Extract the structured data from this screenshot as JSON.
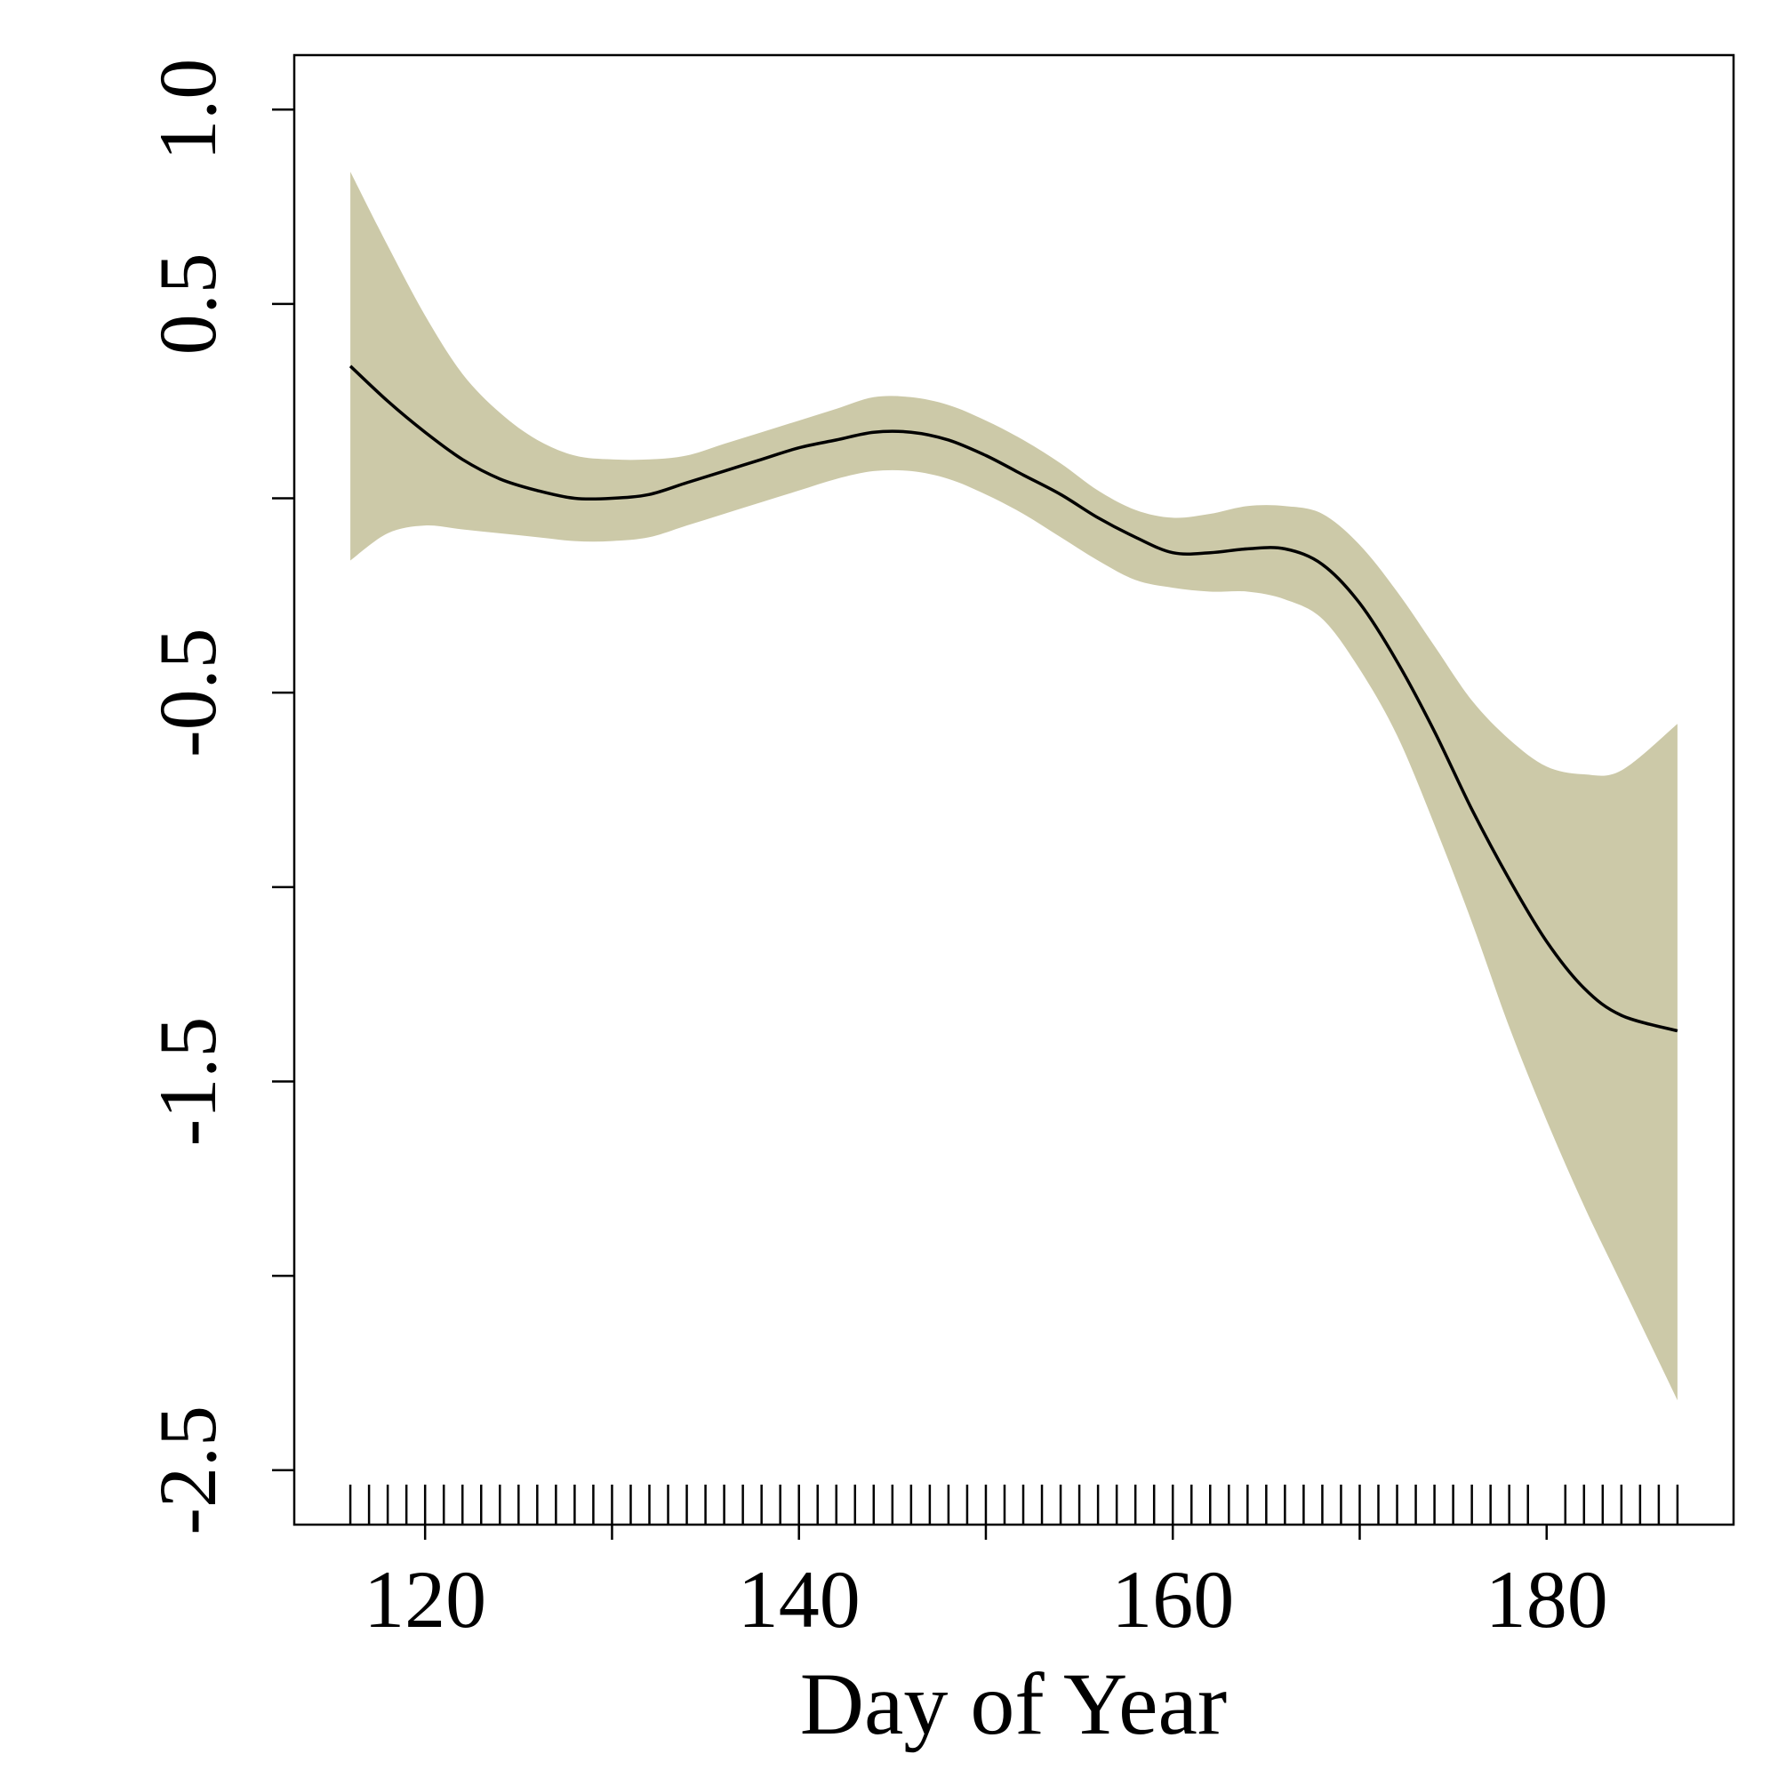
{
  "chart_data": {
    "type": "line",
    "xlabel": "Day of Year",
    "ylabel": "",
    "xlim": [
      113,
      190
    ],
    "ylim": [
      -2.64,
      1.14
    ],
    "x_ticks": [
      120,
      130,
      140,
      150,
      160,
      170,
      180
    ],
    "x_tick_labels": [
      "120",
      "",
      "140",
      "",
      "160",
      "",
      "180"
    ],
    "y_ticks": [
      1.0,
      0.5,
      0.0,
      -0.5,
      -1.0,
      -1.5,
      -2.0,
      -2.5
    ],
    "y_tick_labels": [
      "1.0",
      "0.5",
      "",
      "-0.5",
      "",
      "-1.5",
      "",
      "-2.5"
    ],
    "series": [
      {
        "role": "fit",
        "color": "#000000",
        "x": [
          116,
          118,
          120,
          122,
          124,
          126,
          128,
          130,
          132,
          134,
          136,
          138,
          140,
          142,
          144,
          146,
          148,
          150,
          152,
          154,
          156,
          158,
          160,
          162,
          164,
          166,
          168,
          170,
          172,
          174,
          176,
          178,
          180,
          182,
          184,
          187
        ],
        "y": [
          0.34,
          0.25,
          0.17,
          0.1,
          0.05,
          0.02,
          0.0,
          0.0,
          0.01,
          0.04,
          0.07,
          0.1,
          0.13,
          0.15,
          0.17,
          0.17,
          0.15,
          0.11,
          0.06,
          0.01,
          -0.05,
          -0.1,
          -0.14,
          -0.14,
          -0.13,
          -0.13,
          -0.17,
          -0.27,
          -0.42,
          -0.6,
          -0.8,
          -0.98,
          -1.14,
          -1.26,
          -1.33,
          -1.37
        ]
      },
      {
        "role": "confidence-band",
        "color": "#ccc9a8",
        "x": [
          116,
          118,
          120,
          122,
          124,
          126,
          128,
          130,
          132,
          134,
          136,
          138,
          140,
          142,
          144,
          146,
          148,
          150,
          152,
          154,
          156,
          158,
          160,
          162,
          164,
          166,
          168,
          170,
          172,
          174,
          176,
          178,
          180,
          182,
          184,
          187
        ],
        "upper": [
          0.84,
          0.65,
          0.47,
          0.32,
          0.22,
          0.15,
          0.11,
          0.1,
          0.1,
          0.11,
          0.14,
          0.17,
          0.2,
          0.23,
          0.26,
          0.26,
          0.24,
          0.2,
          0.15,
          0.09,
          0.02,
          -0.03,
          -0.05,
          -0.04,
          -0.02,
          -0.02,
          -0.04,
          -0.12,
          -0.24,
          -0.38,
          -0.52,
          -0.62,
          -0.69,
          -0.71,
          -0.7,
          -0.58
        ],
        "lower": [
          -0.16,
          -0.09,
          -0.07,
          -0.08,
          -0.09,
          -0.1,
          -0.11,
          -0.11,
          -0.1,
          -0.07,
          -0.04,
          -0.01,
          0.02,
          0.05,
          0.07,
          0.07,
          0.05,
          0.01,
          -0.04,
          -0.1,
          -0.16,
          -0.21,
          -0.23,
          -0.24,
          -0.24,
          -0.26,
          -0.31,
          -0.44,
          -0.61,
          -0.84,
          -1.09,
          -1.36,
          -1.6,
          -1.82,
          -2.02,
          -2.32
        ]
      }
    ],
    "rug_x": [
      116,
      117,
      118,
      119,
      120,
      121,
      122,
      123,
      124,
      125,
      126,
      127,
      128,
      129,
      130,
      131,
      132,
      133,
      134,
      135,
      136,
      137,
      138,
      139,
      140,
      141,
      142,
      143,
      144,
      145,
      146,
      147,
      148,
      149,
      150,
      151,
      152,
      153,
      154,
      155,
      156,
      157,
      158,
      159,
      160,
      161,
      162,
      163,
      164,
      165,
      166,
      167,
      168,
      169,
      170,
      171,
      172,
      173,
      174,
      175,
      176,
      177,
      178,
      179,
      181,
      182,
      183,
      184,
      185,
      186,
      187
    ],
    "grid": false,
    "legend": "none"
  }
}
